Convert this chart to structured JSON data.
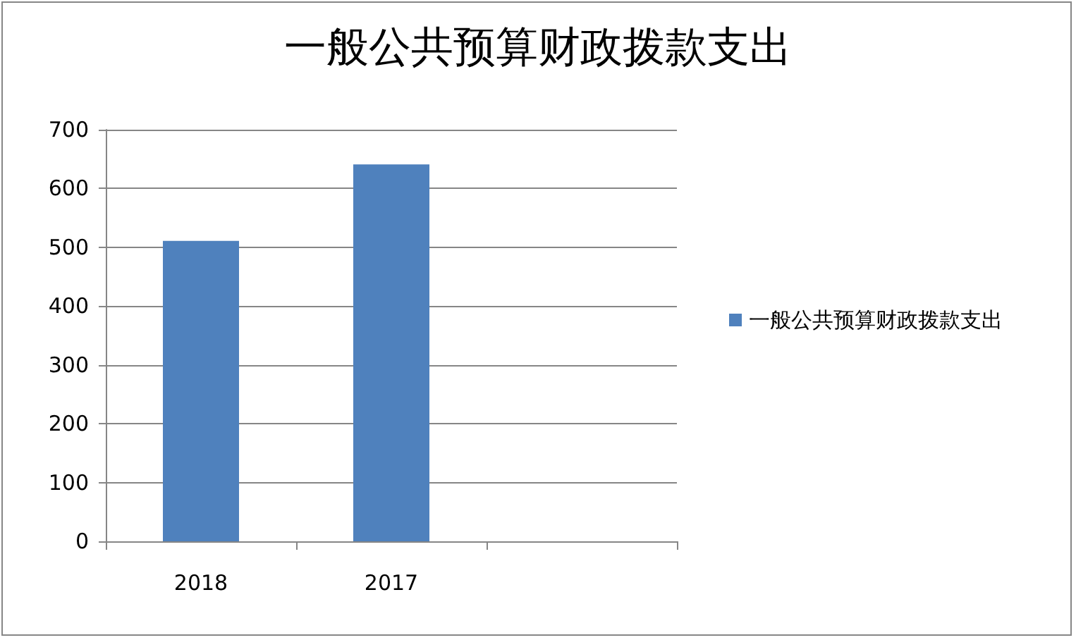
{
  "chart_data": {
    "type": "bar",
    "title": "一般公共预算财政拨款支出",
    "categories": [
      "2018",
      "2017",
      null
    ],
    "series": [
      {
        "name": "一般公共预算财政拨款支出",
        "color": "#4f81bd",
        "values": [
          511,
          641,
          null
        ]
      }
    ],
    "ylim": [
      0,
      700
    ],
    "yticks": [
      0,
      100,
      200,
      300,
      400,
      500,
      600,
      700
    ],
    "grid": "y",
    "legend": "right"
  }
}
